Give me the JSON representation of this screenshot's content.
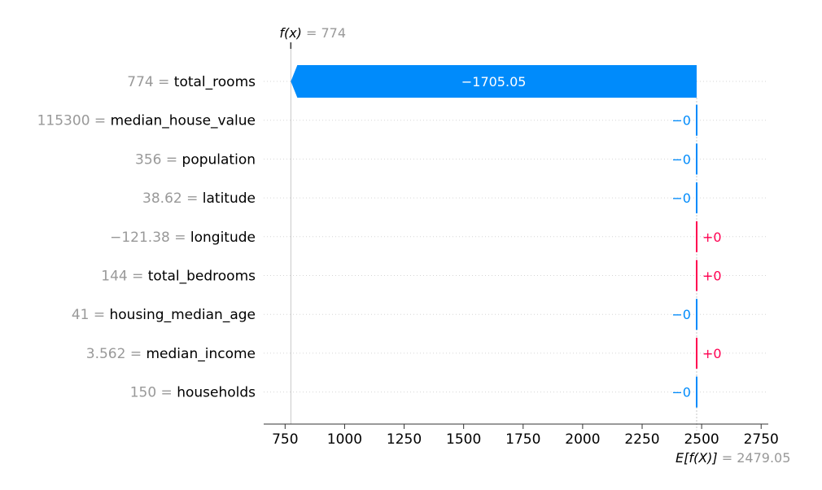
{
  "chart_data": {
    "type": "waterfall",
    "fx": {
      "label": "f(x)",
      "eq": " = ",
      "value": "774",
      "numeric": 774
    },
    "base": {
      "label": "E[f(X)]",
      "eq": " = ",
      "value": "2479.05",
      "numeric": 2479.05
    },
    "xlim": [
      660,
      2780
    ],
    "xticks": [
      {
        "v": 750,
        "label": "750"
      },
      {
        "v": 1000,
        "label": "1000"
      },
      {
        "v": 1250,
        "label": "1250"
      },
      {
        "v": 1500,
        "label": "1500"
      },
      {
        "v": 1750,
        "label": "1750"
      },
      {
        "v": 2000,
        "label": "2000"
      },
      {
        "v": 2250,
        "label": "2250"
      },
      {
        "v": 2500,
        "label": "2500"
      },
      {
        "v": 2750,
        "label": "2750"
      }
    ],
    "features": [
      {
        "value": "774",
        "name": "total_rooms",
        "shap": -1705.05,
        "shap_label": "−1705.05"
      },
      {
        "value": "115300",
        "name": "median_house_value",
        "shap": -0.0,
        "shap_label": "−0"
      },
      {
        "value": "356",
        "name": "population",
        "shap": -0.0,
        "shap_label": "−0"
      },
      {
        "value": "38.62",
        "name": "latitude",
        "shap": -0.0,
        "shap_label": "−0"
      },
      {
        "value": "−121.38",
        "name": "longitude",
        "shap": 0.0,
        "shap_label": "+0"
      },
      {
        "value": "144",
        "name": "total_bedrooms",
        "shap": 0.0,
        "shap_label": "+0"
      },
      {
        "value": "41",
        "name": "housing_median_age",
        "shap": -0.0,
        "shap_label": "−0"
      },
      {
        "value": "3.562",
        "name": "median_income",
        "shap": 0.0,
        "shap_label": "+0"
      },
      {
        "value": "150",
        "name": "households",
        "shap": -0.0,
        "shap_label": "−0"
      }
    ],
    "colors": {
      "negative": "#008bfb",
      "positive": "#ff0051",
      "grid": "#cccccc",
      "axis": "#333333"
    },
    "grid": true
  }
}
